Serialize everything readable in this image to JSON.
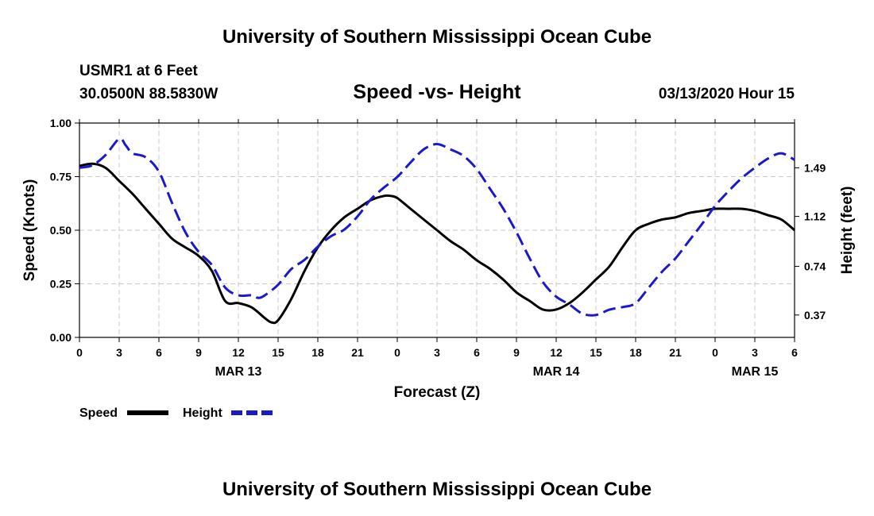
{
  "header": {
    "title": "University of Southern Mississippi Ocean Cube",
    "station": "USMR1 at 6 Feet",
    "coords": "30.0500N 88.5830W",
    "subtitle": "Speed -vs- Height",
    "timestamp": "03/13/2020 Hour 15"
  },
  "footer": {
    "title": "University of Southern Mississippi Ocean Cube"
  },
  "chart_data": {
    "type": "line",
    "title": "Speed -vs- Height",
    "xlabel": "Forecast (Z)",
    "ylabel": "Speed (Knots)",
    "y2label": "Height (feet)",
    "x_unit": "hours since 00Z Mar 13",
    "xlim": [
      0,
      54
    ],
    "ylim": [
      0,
      1.0
    ],
    "y2lim": [
      0.2,
      1.83
    ],
    "x_ticks": [
      0,
      3,
      6,
      9,
      12,
      15,
      18,
      21,
      24,
      27,
      30,
      33,
      36,
      39,
      42,
      45,
      48,
      51,
      54
    ],
    "x_tick_labels": [
      "0",
      "3",
      "6",
      "9",
      "12",
      "15",
      "18",
      "21",
      "0",
      "3",
      "6",
      "9",
      "12",
      "15",
      "18",
      "21",
      "0",
      "3",
      "6"
    ],
    "date_labels": [
      {
        "x": 12,
        "text": "MAR 13"
      },
      {
        "x": 36,
        "text": "MAR 14"
      },
      {
        "x": 51,
        "text": "MAR 15"
      }
    ],
    "y_ticks": [
      0,
      0.25,
      0.5,
      0.75,
      1.0
    ],
    "y_tick_labels": [
      "0.00",
      "0.25",
      "0.50",
      "0.75",
      "1.00"
    ],
    "y2_ticks": [
      0.37,
      0.74,
      1.12,
      1.49
    ],
    "y2_tick_labels": [
      "0.37",
      "0.74",
      "1.12",
      "1.49"
    ],
    "grid": true,
    "legend": [
      {
        "name": "Speed",
        "color": "#000000",
        "dash": "solid"
      },
      {
        "name": "Height",
        "color": "#1a1acc",
        "dash": "dashed"
      }
    ],
    "series": [
      {
        "name": "Speed",
        "axis": "left",
        "color": "#000000",
        "x": [
          0,
          1,
          2,
          3,
          4,
          5,
          6,
          7,
          8,
          9,
          10,
          11,
          12,
          13,
          14,
          14.5,
          15,
          16,
          17,
          18,
          19,
          20,
          21,
          22,
          23,
          23.5,
          24,
          25,
          26,
          27,
          28,
          29,
          30,
          31,
          32,
          33,
          34,
          35,
          36,
          37,
          38,
          39,
          40,
          41,
          42,
          43,
          44,
          45,
          46,
          47,
          48,
          49,
          50,
          51,
          52,
          53,
          54
        ],
        "values": [
          0.8,
          0.81,
          0.79,
          0.73,
          0.67,
          0.6,
          0.53,
          0.46,
          0.42,
          0.38,
          0.31,
          0.17,
          0.16,
          0.14,
          0.09,
          0.07,
          0.08,
          0.18,
          0.31,
          0.42,
          0.5,
          0.56,
          0.6,
          0.64,
          0.66,
          0.66,
          0.65,
          0.6,
          0.55,
          0.5,
          0.45,
          0.41,
          0.36,
          0.32,
          0.27,
          0.21,
          0.17,
          0.13,
          0.13,
          0.16,
          0.21,
          0.27,
          0.33,
          0.42,
          0.5,
          0.53,
          0.55,
          0.56,
          0.58,
          0.59,
          0.6,
          0.6,
          0.6,
          0.59,
          0.57,
          0.55,
          0.5
        ]
      },
      {
        "name": "Height",
        "axis": "right",
        "color": "#1a1acc",
        "x": [
          0,
          1,
          2,
          3,
          3.5,
          4,
          5,
          6,
          7,
          8,
          9,
          10,
          11,
          12,
          13,
          13.5,
          14,
          15,
          16,
          17,
          18,
          19,
          20,
          21,
          22,
          23,
          24,
          25,
          26,
          27,
          28,
          29,
          30,
          31,
          32,
          33,
          34,
          35,
          36,
          37,
          38,
          39,
          40,
          41,
          42,
          43,
          44,
          45,
          46,
          47,
          48,
          49,
          50,
          51,
          52,
          53,
          54
        ],
        "values": [
          1.49,
          1.51,
          1.59,
          1.71,
          1.66,
          1.6,
          1.57,
          1.46,
          1.22,
          1.0,
          0.85,
          0.75,
          0.58,
          0.52,
          0.52,
          0.5,
          0.52,
          0.6,
          0.72,
          0.79,
          0.89,
          0.97,
          1.02,
          1.12,
          1.25,
          1.34,
          1.42,
          1.53,
          1.63,
          1.67,
          1.63,
          1.58,
          1.48,
          1.33,
          1.18,
          1.0,
          0.8,
          0.62,
          0.51,
          0.45,
          0.38,
          0.37,
          0.41,
          0.43,
          0.46,
          0.58,
          0.7,
          0.8,
          0.93,
          1.06,
          1.2,
          1.31,
          1.41,
          1.49,
          1.56,
          1.6,
          1.55
        ]
      }
    ]
  }
}
